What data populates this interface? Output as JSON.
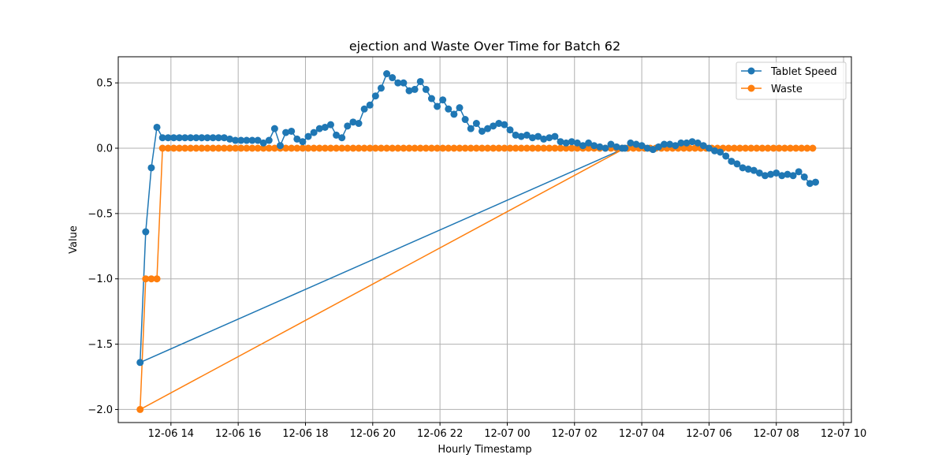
{
  "chart_data": {
    "type": "line",
    "title": "ejection and Waste Over Time for Batch 62",
    "xlabel": "Hourly Timestamp",
    "ylabel": "Value",
    "xlim": [
      "2025-12-06 12:26",
      "2025-12-07 10:14"
    ],
    "ylim": [
      -2.1,
      0.7
    ],
    "grid": true,
    "legend_position": "top-right",
    "x_ticks": [
      "12-06 14",
      "12-06 16",
      "12-06 18",
      "12-06 20",
      "12-06 22",
      "12-07 00",
      "12-07 02",
      "12-07 04",
      "12-07 06",
      "12-07 08",
      "12-07 10"
    ],
    "y_ticks": [
      "−2.0",
      "−1.5",
      "−1.0",
      "−0.5",
      "0.0",
      "0.5"
    ],
    "x_values_description": "hourly timestamps",
    "x": [
      "2025-12-06 13:05",
      "2025-12-07 03:30",
      "2025-12-07 03:40",
      "2025-12-07 03:50",
      "2025-12-07 04:00",
      "2025-12-07 04:10",
      "2025-12-07 04:20",
      "2025-12-07 04:30",
      "2025-12-07 04:40",
      "2025-12-07 04:50",
      "2025-12-07 05:00",
      "2025-12-07 05:10",
      "2025-12-07 05:20",
      "2025-12-07 05:30",
      "2025-12-07 05:40",
      "2025-12-07 05:50",
      "2025-12-07 06:00",
      "2025-12-07 06:10",
      "2025-12-07 06:20",
      "2025-12-07 06:30",
      "2025-12-07 06:40",
      "2025-12-07 06:50",
      "2025-12-07 07:00",
      "2025-12-07 07:10",
      "2025-12-07 07:20",
      "2025-12-07 07:30",
      "2025-12-07 07:40",
      "2025-12-07 07:50",
      "2025-12-07 08:00",
      "2025-12-07 08:10",
      "2025-12-07 08:20",
      "2025-12-07 08:30",
      "2025-12-07 08:40",
      "2025-12-07 08:50",
      "2025-12-07 09:00",
      "2025-12-07 09:10"
    ],
    "series": [
      {
        "name": "Tablet Speed",
        "color": "#1f77b4",
        "segments": [
          {
            "x": [
              "2025-12-06 13:05",
              "2025-12-06 13:15",
              "2025-12-06 13:25",
              "2025-12-06 13:35",
              "2025-12-06 13:45",
              "2025-12-06 13:55",
              "2025-12-06 14:05",
              "2025-12-06 14:15",
              "2025-12-06 14:25",
              "2025-12-06 14:35",
              "2025-12-06 14:45",
              "2025-12-06 14:55",
              "2025-12-06 15:05",
              "2025-12-06 15:15",
              "2025-12-06 15:25",
              "2025-12-06 15:35",
              "2025-12-06 15:45",
              "2025-12-06 15:55",
              "2025-12-06 16:05",
              "2025-12-06 16:15",
              "2025-12-06 16:25",
              "2025-12-06 16:35",
              "2025-12-06 16:45",
              "2025-12-06 16:55",
              "2025-12-06 17:05",
              "2025-12-06 17:15",
              "2025-12-06 17:25",
              "2025-12-06 17:35",
              "2025-12-06 17:45",
              "2025-12-06 17:55",
              "2025-12-06 18:05",
              "2025-12-06 18:15",
              "2025-12-06 18:25",
              "2025-12-06 18:35",
              "2025-12-06 18:45",
              "2025-12-06 18:55",
              "2025-12-06 19:05",
              "2025-12-06 19:15",
              "2025-12-06 19:25",
              "2025-12-06 19:35",
              "2025-12-06 19:45",
              "2025-12-06 19:55",
              "2025-12-06 20:05",
              "2025-12-06 20:15",
              "2025-12-06 20:25",
              "2025-12-06 20:35",
              "2025-12-06 20:45",
              "2025-12-06 20:55",
              "2025-12-06 21:05",
              "2025-12-06 21:15",
              "2025-12-06 21:25",
              "2025-12-06 21:35",
              "2025-12-06 21:45",
              "2025-12-06 21:55",
              "2025-12-06 22:05",
              "2025-12-06 22:15",
              "2025-12-06 22:25",
              "2025-12-06 22:35",
              "2025-12-06 22:45",
              "2025-12-06 22:55",
              "2025-12-06 23:05",
              "2025-12-06 23:15",
              "2025-12-06 23:25",
              "2025-12-06 23:35",
              "2025-12-06 23:45",
              "2025-12-06 23:55",
              "2025-12-07 00:05",
              "2025-12-07 00:15",
              "2025-12-07 00:25",
              "2025-12-07 00:35",
              "2025-12-07 00:45",
              "2025-12-07 00:55",
              "2025-12-07 01:05",
              "2025-12-07 01:15",
              "2025-12-07 01:25",
              "2025-12-07 01:35",
              "2025-12-07 01:45",
              "2025-12-07 01:55",
              "2025-12-07 02:05",
              "2025-12-07 02:15",
              "2025-12-07 02:25",
              "2025-12-07 02:35",
              "2025-12-07 02:45",
              "2025-12-07 02:55",
              "2025-12-07 03:05",
              "2025-12-07 03:15",
              "2025-12-07 03:25"
            ],
            "values": [
              -1.64,
              -0.64,
              -0.15,
              0.16,
              0.08,
              0.08,
              0.08,
              0.08,
              0.08,
              0.08,
              0.08,
              0.08,
              0.08,
              0.08,
              0.08,
              0.08,
              0.07,
              0.06,
              0.06,
              0.06,
              0.06,
              0.06,
              0.04,
              0.06,
              0.15,
              0.02,
              0.12,
              0.13,
              0.07,
              0.05,
              0.09,
              0.12,
              0.15,
              0.16,
              0.18,
              0.1,
              0.08,
              0.17,
              0.2,
              0.19,
              0.3,
              0.33,
              0.4,
              0.46,
              0.57,
              0.54,
              0.5,
              0.5,
              0.44,
              0.45,
              0.51,
              0.45,
              0.38,
              0.32,
              0.37,
              0.3,
              0.26,
              0.31,
              0.22,
              0.15,
              0.19,
              0.13,
              0.15,
              0.17,
              0.19,
              0.18,
              0.14,
              0.1,
              0.09,
              0.1,
              0.08,
              0.09,
              0.07,
              0.08,
              0.09,
              0.05,
              0.04,
              0.05,
              0.04,
              0.02,
              0.04,
              0.02,
              0.01,
              0.0,
              0.03,
              0.01,
              0.0
            ]
          }
        ],
        "continuation": [
          0.0,
          0.04,
          0.03,
          0.02,
          0.0,
          -0.01,
          0.01,
          0.03,
          0.03,
          0.02,
          0.04,
          0.04,
          0.05,
          0.04,
          0.02,
          0.0,
          -0.02,
          -0.03,
          -0.06,
          -0.1,
          -0.12,
          -0.15,
          -0.16,
          -0.17,
          -0.19,
          -0.21,
          -0.2,
          -0.19,
          -0.21,
          -0.2,
          -0.21,
          -0.18,
          -0.22,
          -0.27,
          -0.26,
          -0.26
        ]
      },
      {
        "name": "Waste",
        "color": "#ff7f0e",
        "segments": [
          {
            "x_start": "2025-12-06 13:05",
            "values_head": [
              -2.0,
              -1.0,
              -1.0,
              -1.0
            ],
            "values_flat": 0.0
          }
        ]
      }
    ]
  }
}
